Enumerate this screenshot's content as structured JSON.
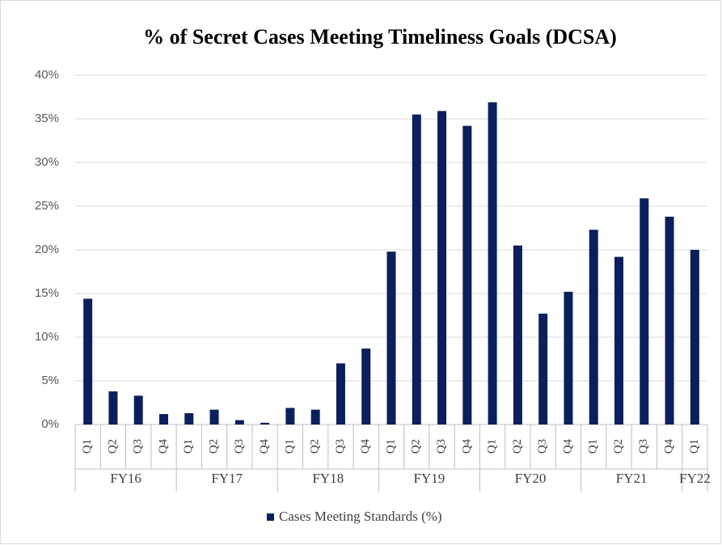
{
  "chart_data": {
    "type": "bar",
    "title": "% of Secret Cases Meeting Timeliness Goals (DCSA)",
    "categories": [
      "Q1",
      "Q2",
      "Q3",
      "Q4",
      "Q1",
      "Q2",
      "Q3",
      "Q4",
      "Q1",
      "Q2",
      "Q3",
      "Q4",
      "Q1",
      "Q2",
      "Q3",
      "Q4",
      "Q1",
      "Q2",
      "Q3",
      "Q4",
      "Q1",
      "Q2",
      "Q3",
      "Q4",
      "Q1"
    ],
    "groups": [
      "FY16",
      "FY17",
      "FY18",
      "FY19",
      "FY20",
      "FY21",
      "FY22"
    ],
    "series": [
      {
        "name": "Cases Meeting Standards (%)",
        "color": "#0b1f5c",
        "values": [
          14.4,
          3.8,
          3.3,
          1.2,
          1.3,
          1.7,
          0.5,
          0.2,
          1.9,
          1.7,
          7.0,
          8.7,
          19.8,
          35.5,
          35.9,
          34.2,
          36.9,
          20.5,
          12.7,
          15.2,
          22.3,
          19.2,
          25.9,
          23.8,
          20.0
        ]
      }
    ],
    "ylim": [
      0,
      40
    ],
    "yticks": [
      {
        "value": 0,
        "label": "0%"
      },
      {
        "value": 5,
        "label": "5%"
      },
      {
        "value": 10,
        "label": "10%"
      },
      {
        "value": 15,
        "label": "15%"
      },
      {
        "value": 20,
        "label": "20%"
      },
      {
        "value": 25,
        "label": "25%"
      },
      {
        "value": 30,
        "label": "30%"
      },
      {
        "value": 35,
        "label": "35%"
      },
      {
        "value": 40,
        "label": "40%"
      }
    ],
    "grid": true,
    "legend": "bottom"
  }
}
